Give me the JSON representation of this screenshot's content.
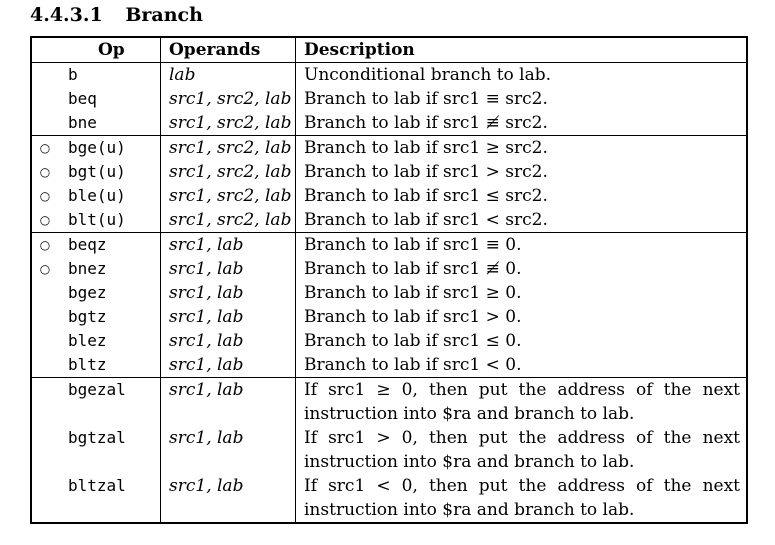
{
  "section": {
    "number": "4.4.3.1",
    "title": "Branch"
  },
  "table": {
    "headers": {
      "op": "Op",
      "operands": "Operands",
      "description": "Description"
    },
    "groups": [
      {
        "rows": [
          {
            "mark": "",
            "op": "b",
            "operands": "lab",
            "description": "Unconditional branch to lab."
          },
          {
            "mark": "",
            "op": "beq",
            "operands": "src1, src2, lab",
            "description": "Branch to lab if src1 ≡ src2."
          },
          {
            "mark": "",
            "op": "bne",
            "operands": "src1, src2, lab",
            "description": "Branch to lab if src1 ≢ src2."
          }
        ]
      },
      {
        "rows": [
          {
            "mark": "○",
            "op": "bge(u)",
            "operands": "src1, src2, lab",
            "description": "Branch to lab if src1 ≥ src2."
          },
          {
            "mark": "○",
            "op": "bgt(u)",
            "operands": "src1, src2, lab",
            "description": "Branch to lab if src1 > src2."
          },
          {
            "mark": "○",
            "op": "ble(u)",
            "operands": "src1, src2, lab",
            "description": "Branch to lab if src1 ≤ src2."
          },
          {
            "mark": "○",
            "op": "blt(u)",
            "operands": "src1, src2, lab",
            "description": "Branch to lab if src1 < src2."
          }
        ]
      },
      {
        "rows": [
          {
            "mark": "○",
            "op": "beqz",
            "operands": "src1, lab",
            "description": "Branch to lab if src1 ≡ 0."
          },
          {
            "mark": "○",
            "op": "bnez",
            "operands": "src1, lab",
            "description": "Branch to lab if src1 ≢ 0."
          },
          {
            "mark": "",
            "op": "bgez",
            "operands": "src1, lab",
            "description": "Branch to lab if src1 ≥ 0."
          },
          {
            "mark": "",
            "op": "bgtz",
            "operands": "src1, lab",
            "description": "Branch to lab if src1 > 0."
          },
          {
            "mark": "",
            "op": "blez",
            "operands": "src1, lab",
            "description": "Branch to lab if src1 ≤ 0."
          },
          {
            "mark": "",
            "op": "bltz",
            "operands": "src1, lab",
            "description": "Branch to lab if src1 < 0."
          }
        ]
      },
      {
        "rows": [
          {
            "mark": "",
            "op": "bgezal",
            "operands": "src1, lab",
            "description": "If src1 ≥ 0, then put the address of the next instruction into $ra and branch to lab."
          },
          {
            "mark": "",
            "op": "bgtzal",
            "operands": "src1, lab",
            "description": "If src1 > 0, then put the address of the next instruction into $ra and branch to lab."
          },
          {
            "mark": "",
            "op": "bltzal",
            "operands": "src1, lab",
            "description": "If src1 < 0, then put the address of the next instruction into $ra and branch to lab."
          }
        ]
      }
    ]
  }
}
